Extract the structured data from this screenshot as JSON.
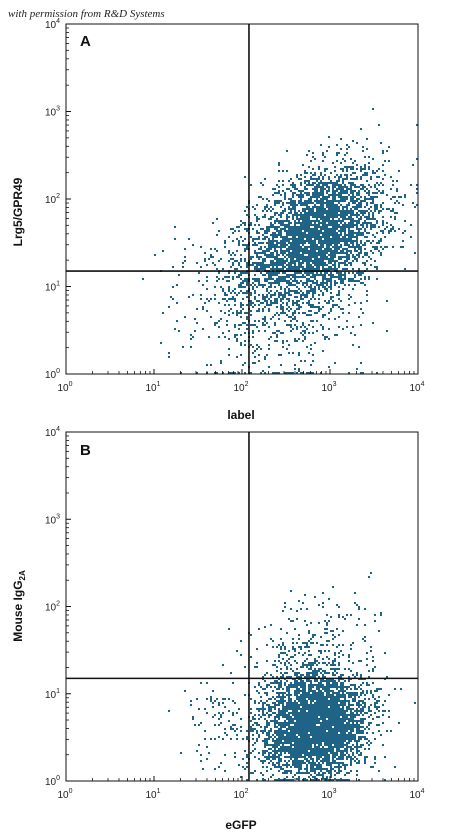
{
  "credit": "with permission from R&D Systems",
  "chart_data": [
    {
      "type": "scatter",
      "panel": "A",
      "xlabel": "label",
      "ylabel": "Lrg5/GPR49",
      "xscale": "log",
      "yscale": "log",
      "xlim": [
        1,
        10000
      ],
      "ylim": [
        1,
        10000
      ],
      "ticks": [
        "10",
        "10",
        "10",
        "10",
        "10"
      ],
      "tick_exponents": [
        "0",
        "1",
        "2",
        "3",
        "4"
      ],
      "gate": {
        "x": 120,
        "y": 15
      },
      "point_color": "#1f6487",
      "clusters": [
        {
          "center": {
            "x": 700,
            "y": 40
          },
          "spread_log10": {
            "x": 0.38,
            "y": 0.38
          },
          "correlation": 0.35,
          "count": 3800
        },
        {
          "center": {
            "x": 300,
            "y": 8
          },
          "spread_log10": {
            "x": 0.45,
            "y": 0.5
          },
          "correlation": 0.2,
          "count": 700
        },
        {
          "center": {
            "x": 60,
            "y": 12
          },
          "spread_log10": {
            "x": 0.35,
            "y": 0.35
          },
          "correlation": 0.1,
          "count": 150
        }
      ]
    },
    {
      "type": "scatter",
      "panel": "B",
      "xlabel": "eGFP",
      "ylabel": "Mouse IgG",
      "ylabel_subscript": "2A",
      "xscale": "log",
      "yscale": "log",
      "xlim": [
        1,
        10000
      ],
      "ylim": [
        1,
        10000
      ],
      "ticks": [
        "10",
        "10",
        "10",
        "10",
        "10"
      ],
      "tick_exponents": [
        "0",
        "1",
        "2",
        "3",
        "4"
      ],
      "gate": {
        "x": 120,
        "y": 15
      },
      "point_color": "#1f6487",
      "clusters": [
        {
          "center": {
            "x": 650,
            "y": 4.5
          },
          "spread_log10": {
            "x": 0.3,
            "y": 0.3
          },
          "correlation": 0.1,
          "count": 4000
        },
        {
          "center": {
            "x": 600,
            "y": 25
          },
          "spread_log10": {
            "x": 0.35,
            "y": 0.35
          },
          "correlation": 0.1,
          "count": 350
        },
        {
          "center": {
            "x": 60,
            "y": 5
          },
          "spread_log10": {
            "x": 0.3,
            "y": 0.3
          },
          "correlation": 0.1,
          "count": 100
        }
      ]
    }
  ]
}
